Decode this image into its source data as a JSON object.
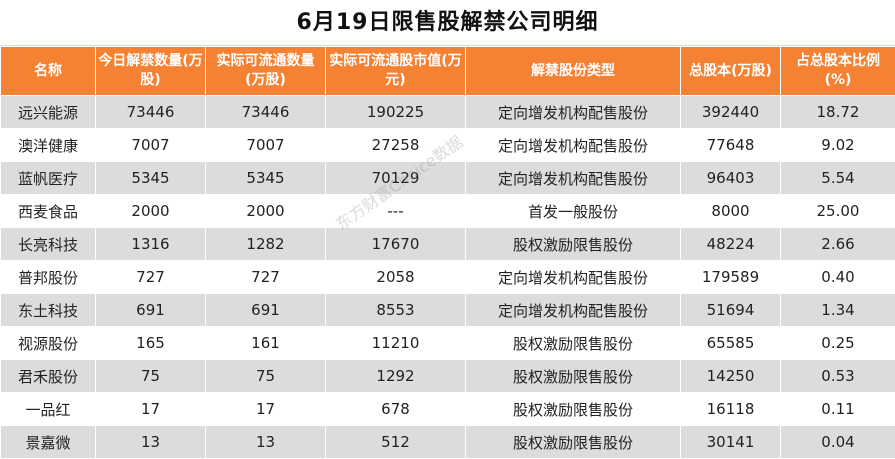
{
  "title": "6月19日限售股解禁公司明细",
  "watermark": "东方财富Choice数据",
  "colors": {
    "header_bg": "#f58233",
    "header_text": "#ffffff",
    "stripe": "#dcdcdc"
  },
  "columns": [
    "名称",
    "今日解禁数量(万股)",
    "实际可流通数量(万股)",
    "实际可流通股市值(万元)",
    "解禁股份类型",
    "总股本(万股)",
    "占总股本比例(%)"
  ],
  "rows": [
    [
      "远兴能源",
      "73446",
      "73446",
      "190225",
      "定向增发机构配售股份",
      "392440",
      "18.72"
    ],
    [
      "澳洋健康",
      "7007",
      "7007",
      "27258",
      "定向增发机构配售股份",
      "77648",
      "9.02"
    ],
    [
      "蓝帆医疗",
      "5345",
      "5345",
      "70129",
      "定向增发机构配售股份",
      "96403",
      "5.54"
    ],
    [
      "西麦食品",
      "2000",
      "2000",
      "---",
      "首发一般股份",
      "8000",
      "25.00"
    ],
    [
      "长亮科技",
      "1316",
      "1282",
      "17670",
      "股权激励限售股份",
      "48224",
      "2.66"
    ],
    [
      "普邦股份",
      "727",
      "727",
      "2058",
      "定向增发机构配售股份",
      "179589",
      "0.40"
    ],
    [
      "东土科技",
      "691",
      "691",
      "8553",
      "定向增发机构配售股份",
      "51694",
      "1.34"
    ],
    [
      "视源股份",
      "165",
      "161",
      "11210",
      "股权激励限售股份",
      "65585",
      "0.25"
    ],
    [
      "君禾股份",
      "75",
      "75",
      "1292",
      "股权激励限售股份",
      "14250",
      "0.53"
    ],
    [
      "一品红",
      "17",
      "17",
      "678",
      "股权激励限售股份",
      "16118",
      "0.11"
    ],
    [
      "景嘉微",
      "13",
      "13",
      "512",
      "股权激励限售股份",
      "30141",
      "0.04"
    ]
  ]
}
